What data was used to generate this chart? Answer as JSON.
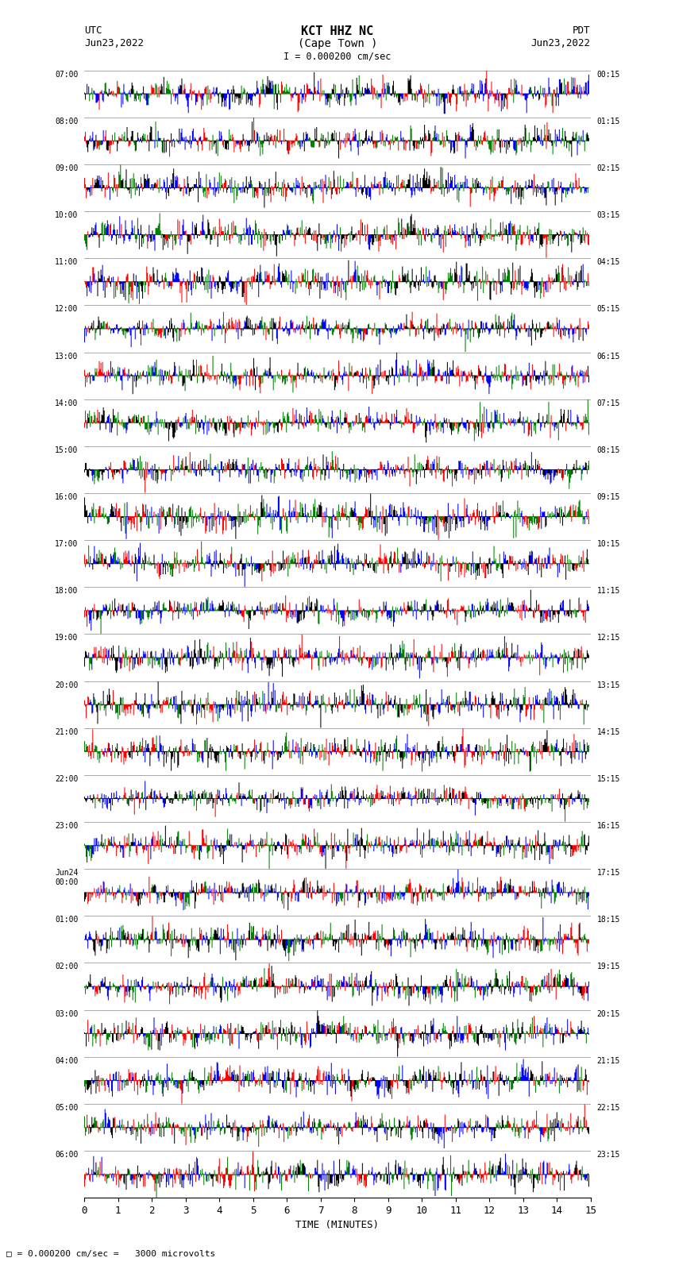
{
  "title_line1": "KCT HHZ NC",
  "title_line2": "(Cape Town )",
  "scale_text": "I = 0.000200 cm/sec",
  "left_label": "UTC",
  "left_date": "Jun23,2022",
  "right_label": "PDT",
  "right_date": "Jun23,2022",
  "bottom_label": "TIME (MINUTES)",
  "bottom_note": "= 0.000200 cm/sec =   3000 microvolts",
  "utc_times": [
    "07:00",
    "08:00",
    "09:00",
    "10:00",
    "11:00",
    "12:00",
    "13:00",
    "14:00",
    "15:00",
    "16:00",
    "17:00",
    "18:00",
    "19:00",
    "20:00",
    "21:00",
    "22:00",
    "23:00",
    "Jun24\n00:00",
    "01:00",
    "02:00",
    "03:00",
    "04:00",
    "05:00",
    "06:00"
  ],
  "pdt_times": [
    "00:15",
    "01:15",
    "02:15",
    "03:15",
    "04:15",
    "05:15",
    "06:15",
    "07:15",
    "08:15",
    "09:15",
    "10:15",
    "11:15",
    "12:15",
    "13:15",
    "14:15",
    "15:15",
    "16:15",
    "17:15",
    "18:15",
    "19:15",
    "20:15",
    "21:15",
    "22:15",
    "23:15"
  ],
  "n_rows": 24,
  "x_min": 0,
  "x_max": 15,
  "x_ticks": [
    0,
    1,
    2,
    3,
    4,
    5,
    6,
    7,
    8,
    9,
    10,
    11,
    12,
    13,
    14,
    15
  ],
  "background_color": "white",
  "fig_width": 8.5,
  "fig_height": 16.13,
  "dpi": 100
}
